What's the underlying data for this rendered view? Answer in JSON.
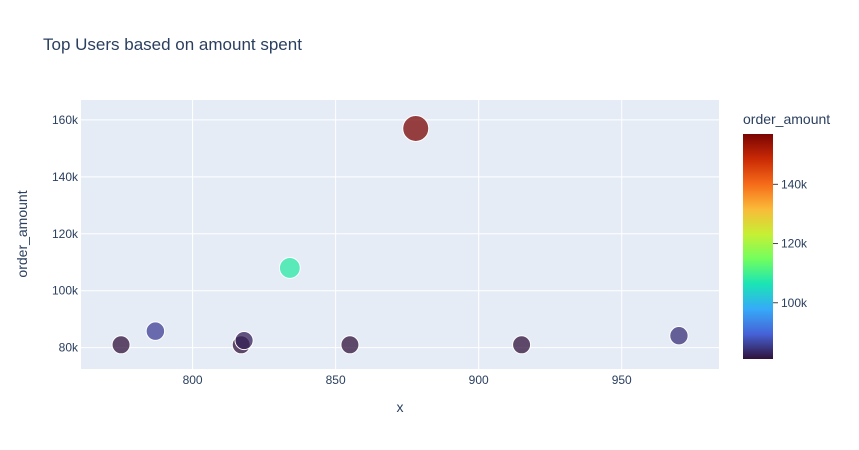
{
  "chart_data": {
    "type": "scatter",
    "title": "Top Users based on amount spent",
    "xlabel": "x",
    "ylabel": "order_amount",
    "xlim": [
      761,
      984
    ],
    "ylim": [
      72500,
      167000
    ],
    "x_ticks": [
      {
        "value": 800,
        "label": "800"
      },
      {
        "value": 850,
        "label": "850"
      },
      {
        "value": 900,
        "label": "900"
      },
      {
        "value": 950,
        "label": "950"
      }
    ],
    "y_ticks": [
      {
        "value": 80000,
        "label": "80k"
      },
      {
        "value": 100000,
        "label": "100k"
      },
      {
        "value": 120000,
        "label": "120k"
      },
      {
        "value": 140000,
        "label": "140k"
      },
      {
        "value": 160000,
        "label": "160k"
      }
    ],
    "grid": true,
    "colorbar": {
      "title": "order_amount",
      "min": 81000,
      "max": 157000,
      "ticks": [
        {
          "value": 100000,
          "label": "100k"
        },
        {
          "value": 120000,
          "label": "120k"
        },
        {
          "value": 140000,
          "label": "140k"
        }
      ],
      "colorscale": [
        "#30123b",
        "#4662d7",
        "#36aaf9",
        "#1ae4b6",
        "#72fe5e",
        "#c7ef34",
        "#faba39",
        "#f66b19",
        "#ca2a04",
        "#7a0403"
      ]
    },
    "points": [
      {
        "x": 775,
        "y": 81000
      },
      {
        "x": 787,
        "y": 85800
      },
      {
        "x": 817,
        "y": 81000
      },
      {
        "x": 818,
        "y": 82500
      },
      {
        "x": 834,
        "y": 108000
      },
      {
        "x": 855,
        "y": 81000
      },
      {
        "x": 878,
        "y": 157000
      },
      {
        "x": 915,
        "y": 81000
      },
      {
        "x": 970,
        "y": 84200
      }
    ],
    "size_by": "order_amount"
  }
}
